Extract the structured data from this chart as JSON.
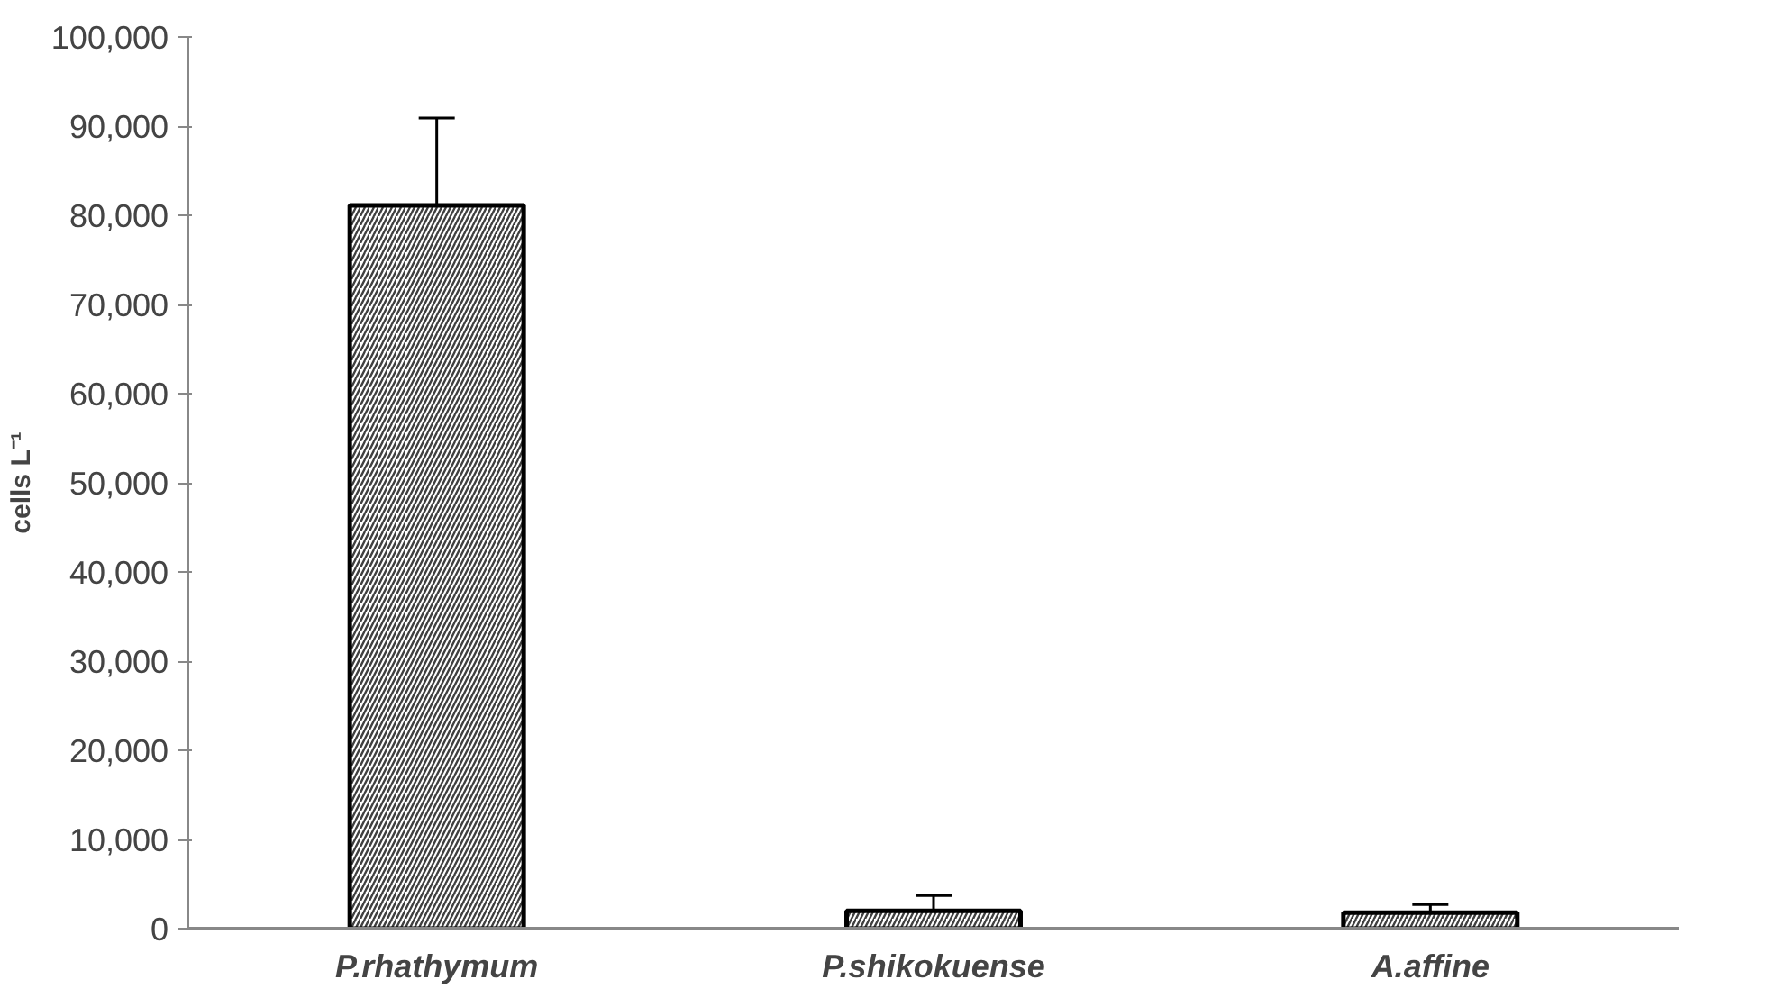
{
  "chart_data": {
    "type": "bar",
    "ylabel": "cells L⁻¹",
    "categories": [
      "P.rhathymum",
      "P.shikokuense",
      "A.affine"
    ],
    "values": [
      81100,
      2000,
      1800
    ],
    "errors": [
      9800,
      1700,
      900
    ],
    "color": "#ffffff",
    "ylim": [
      0,
      100000
    ],
    "yticks": [
      {
        "value": 0,
        "label": "0"
      },
      {
        "value": 10000,
        "label": "10,000"
      },
      {
        "value": 20000,
        "label": "20,000"
      },
      {
        "value": 30000,
        "label": "30,000"
      },
      {
        "value": 40000,
        "label": "40,000"
      },
      {
        "value": 50000,
        "label": "50,000"
      },
      {
        "value": 60000,
        "label": "60,000"
      },
      {
        "value": 70000,
        "label": "70,000"
      },
      {
        "value": 80000,
        "label": "80,000"
      },
      {
        "value": 90000,
        "label": "90,000"
      },
      {
        "value": 100000,
        "label": "100,000"
      }
    ],
    "grid": false
  }
}
